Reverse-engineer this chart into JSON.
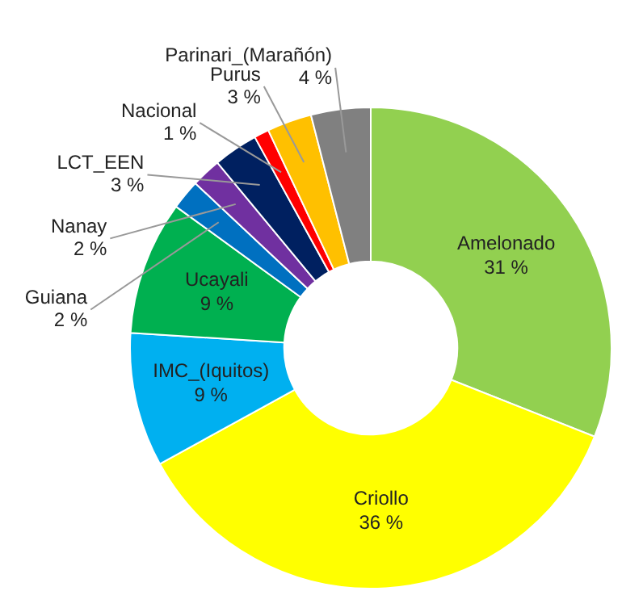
{
  "chart_data": {
    "type": "donut",
    "categories": [
      "Amelonado",
      "Criollo",
      "IMC_(Iquitos)",
      "Ucayali",
      "Guiana",
      "Nanay",
      "LCT_EEN",
      "Nacional",
      "Purus",
      "Parinari_(Marañón)"
    ],
    "values": [
      31,
      36,
      9,
      9,
      2,
      2,
      3,
      1,
      3,
      4
    ],
    "value_labels": [
      "31 %",
      "36 %",
      "9 %",
      "9 %",
      "2 %",
      "2 %",
      "3 %",
      "1 %",
      "3 %",
      "4 %"
    ],
    "colors": [
      "#92d050",
      "#ffff00",
      "#00b0f0",
      "#00b050",
      "#0070c0",
      "#7030a0",
      "#002060",
      "#ff0000",
      "#ffc000",
      "#808080"
    ],
    "legend": false
  }
}
